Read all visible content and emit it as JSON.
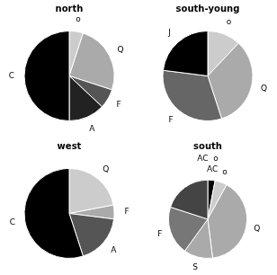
{
  "chart_data": [
    {
      "type": "pie",
      "title": "north",
      "categories": [
        "o",
        "Q",
        "F",
        "A",
        "C"
      ],
      "values": [
        5,
        25,
        7,
        13,
        50
      ],
      "colors": [
        "#cccccc",
        "#aaaaaa",
        "#555555",
        "#222222",
        "#000000"
      ]
    },
    {
      "type": "pie",
      "title": "south-young",
      "categories": [
        "o",
        "Q",
        "F",
        "J"
      ],
      "values": [
        12,
        33,
        32,
        23
      ],
      "colors": [
        "#cccccc",
        "#aaaaaa",
        "#666666",
        "#000000"
      ]
    },
    {
      "type": "pie",
      "title": "west",
      "categories": [
        "Q",
        "F",
        "A",
        "C"
      ],
      "values": [
        22,
        5,
        18,
        55
      ],
      "colors": [
        "#cccccc",
        "#aaaaaa",
        "#555555",
        "#000000"
      ]
    },
    {
      "type": "pie",
      "title": "south",
      "subtitle": "AC  o",
      "categories": [
        "AC",
        "o",
        "Q",
        "S",
        "F",
        null
      ],
      "values": [
        3,
        5,
        40,
        12,
        20,
        20
      ],
      "colors": [
        "#000000",
        "#cccccc",
        "#aaaaaa",
        "#aaaaaa",
        "#777777",
        "#444444"
      ]
    }
  ]
}
